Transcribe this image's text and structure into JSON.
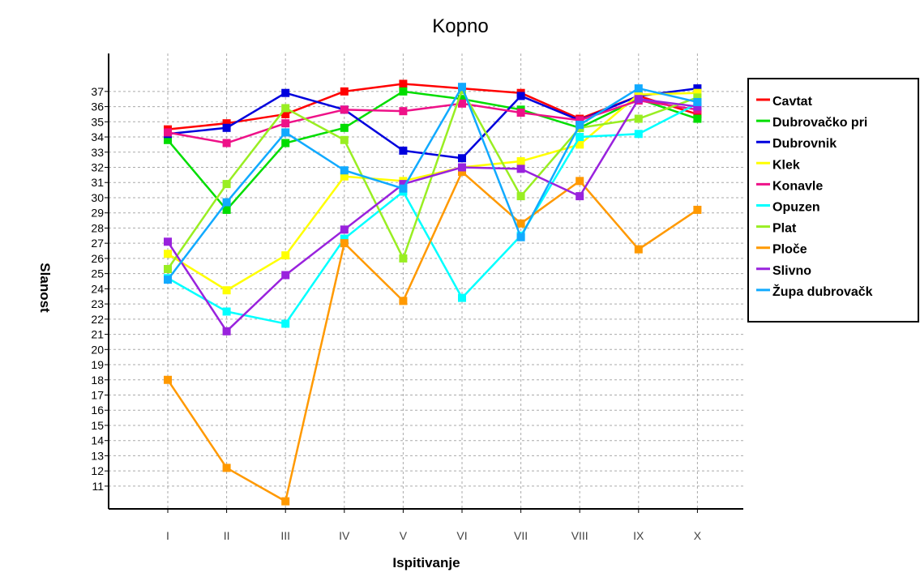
{
  "chart_data": {
    "type": "line",
    "title": "Kopno",
    "xlabel": "Ispitivanje",
    "ylabel": "Slanost",
    "categories": [
      "I",
      "II",
      "III",
      "IV",
      "V",
      "VI",
      "VII",
      "VIII",
      "IX",
      "X"
    ],
    "yticks": [
      11,
      12,
      13,
      14,
      15,
      16,
      17,
      18,
      19,
      20,
      21,
      22,
      23,
      24,
      25,
      26,
      27,
      28,
      29,
      30,
      31,
      32,
      33,
      34,
      35,
      36,
      37
    ],
    "ylim": [
      9.5,
      39.5
    ],
    "grid": true,
    "legend_position": "right",
    "series": [
      {
        "name": "Cavtat",
        "color": "#ff0000",
        "values": [
          34.5,
          34.9,
          35.5,
          37.0,
          37.5,
          37.2,
          36.9,
          35.2,
          36.7,
          35.5
        ]
      },
      {
        "name": "Dubrovačko pri",
        "color": "#00dd00",
        "values": [
          33.8,
          29.2,
          33.6,
          34.6,
          37.0,
          36.5,
          35.8,
          34.6,
          36.5,
          35.2
        ]
      },
      {
        "name": "Dubrovnik",
        "color": "#0000dd",
        "values": [
          34.2,
          34.6,
          36.9,
          35.8,
          33.1,
          32.6,
          36.7,
          35.1,
          36.7,
          37.2
        ]
      },
      {
        "name": "Klek",
        "color": "#ffff00",
        "values": [
          26.3,
          23.9,
          26.2,
          31.4,
          31.1,
          32.0,
          32.4,
          33.5,
          36.8,
          36.9
        ]
      },
      {
        "name": "Konavle",
        "color": "#ee1188",
        "values": [
          34.3,
          33.6,
          34.9,
          35.8,
          35.7,
          36.2,
          35.6,
          35.1,
          36.4,
          35.8
        ]
      },
      {
        "name": "Opuzen",
        "color": "#00ffff",
        "values": [
          24.7,
          22.5,
          21.7,
          27.3,
          30.4,
          23.4,
          27.5,
          34.0,
          34.2,
          36.2
        ]
      },
      {
        "name": "Plat",
        "color": "#99ee22",
        "values": [
          25.3,
          30.9,
          35.9,
          33.8,
          26.0,
          37.1,
          30.1,
          34.6,
          35.2,
          36.6
        ]
      },
      {
        "name": "Ploče",
        "color": "#ff9900",
        "values": [
          18.0,
          12.2,
          10.0,
          27.0,
          23.2,
          31.7,
          28.3,
          31.1,
          26.6,
          29.2
        ]
      },
      {
        "name": "Slivno",
        "color": "#9922dd",
        "values": [
          27.1,
          21.2,
          24.9,
          27.9,
          30.9,
          32.0,
          31.9,
          30.1,
          36.5,
          36.0
        ]
      },
      {
        "name": "Župa dubrovačk",
        "color": "#11aaff",
        "values": [
          24.6,
          29.7,
          34.3,
          31.8,
          30.6,
          37.3,
          27.4,
          34.8,
          37.2,
          36.3
        ]
      }
    ]
  }
}
